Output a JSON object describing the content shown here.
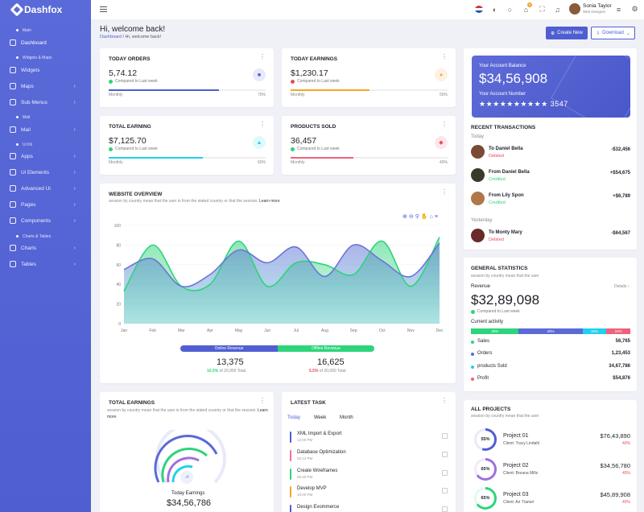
{
  "brand": "Dashfox",
  "sidebar": {
    "categories": [
      "Main",
      "Widgets & Maps",
      "Mail",
      "Ui Kit",
      "Charts & Tables"
    ],
    "items": [
      {
        "label": "Dashboard",
        "chev": ""
      },
      {
        "label": "Widgets",
        "chev": ""
      },
      {
        "label": "Maps",
        "chev": "›"
      },
      {
        "label": "Sub Menus",
        "chev": "›"
      },
      {
        "label": "Mail",
        "chev": "›"
      },
      {
        "label": "Apps",
        "chev": "›"
      },
      {
        "label": "Ui Elements",
        "chev": "›"
      },
      {
        "label": "Advanced Ui",
        "chev": "›"
      },
      {
        "label": "Pages",
        "chev": "›"
      },
      {
        "label": "Components",
        "chev": "›"
      },
      {
        "label": "Charts",
        "chev": "›"
      },
      {
        "label": "Tables",
        "chev": "›"
      }
    ]
  },
  "topbar": {
    "cart_badge": "5",
    "user_name": "Sonia Taylor",
    "user_role": "Web Designer"
  },
  "header": {
    "title": "Hi, welcome back!",
    "crumb_home": "Dashboard",
    "crumb_current": "Hi, welcome back!",
    "create_label": "Create New",
    "download_label": "Download"
  },
  "stats": [
    {
      "title": "TODAY ORDERS",
      "value": "5,74.12",
      "compare": "Compared to Last week",
      "label": "Monthly",
      "pct": "70%",
      "fill": 0.7
    },
    {
      "title": "TODAY EARNINGS",
      "value": "$1,230.17",
      "compare": "Compared to Last week",
      "label": "Monthly",
      "pct": "50%",
      "fill": 0.5
    },
    {
      "title": "TOTAL EARNING",
      "value": "$7,125.70",
      "compare": "Compared to Last week",
      "label": "Monthly",
      "pct": "60%",
      "fill": 0.6
    },
    {
      "title": "PRODUCTS SOLD",
      "value": "36,457",
      "compare": "Compared to Last week",
      "label": "Monthly",
      "pct": "40%",
      "fill": 0.4
    }
  ],
  "overview": {
    "title": "WEBSITE OVERVIEW",
    "subtitle": "session by country mean that the user is from the stated country or that the session.",
    "learn_more": "Learn more",
    "online_label": "Online Revenue",
    "offline_label": "Offline Revenue",
    "online_value": "13,375",
    "online_pct": "10.5%",
    "online_note": "of 20,000 Total",
    "offline_value": "16,625",
    "offline_pct": "5.5%",
    "offline_note": "of 20,000 Total"
  },
  "chart_data": {
    "type": "area",
    "categories": [
      "Jan",
      "Feb",
      "Mar",
      "Apr",
      "May",
      "Jun",
      "Jul",
      "Aug",
      "Sep",
      "Oct",
      "Nov",
      "Dec"
    ],
    "yticks": [
      "0",
      "20",
      "40",
      "60",
      "80",
      "100"
    ],
    "ylim": [
      0,
      100
    ],
    "series": [
      {
        "values": [
          33,
          80,
          38,
          40,
          84,
          38,
          62,
          60,
          50,
          84,
          38,
          88
        ],
        "color": "#2ed47a"
      },
      {
        "values": [
          55,
          66,
          38,
          50,
          75,
          62,
          78,
          48,
          80,
          64,
          48,
          82
        ],
        "color": "#6c74d8"
      }
    ]
  },
  "account": {
    "balance_label": "Your Account Balance",
    "balance": "$34,56,908",
    "number_label": "Your Account Number",
    "number": "★★★★★★★★★★ 3547"
  },
  "transactions": {
    "title": "RECENT TRANSACTIONS",
    "groups": [
      "Today",
      "Yesterday"
    ],
    "items": [
      {
        "name": "To Daniel Bella",
        "status": "Debited",
        "amount": "-$32,456",
        "color": "#e84c5a"
      },
      {
        "name": "From Daniel Bella",
        "status": "Credited",
        "amount": "+$54,675",
        "color": "#2ed47a"
      },
      {
        "name": "From Lily Spon",
        "status": "Credited",
        "amount": "+$6,789",
        "color": "#2ed47a"
      },
      {
        "name": "To Monty Mary",
        "status": "Debited",
        "amount": "-$64,567",
        "color": "#e84c5a"
      }
    ]
  },
  "general": {
    "title": "GENERAL STATISTICS",
    "subtitle": "session by country mean that the user",
    "revenue_label": "Revenue",
    "details": "Details ›",
    "revenue": "$32,89,098",
    "compare": "Compared to Last week",
    "activity_label": "Current activity",
    "segments": [
      {
        "label": "30%",
        "value": 0.3,
        "color": "#2ed47a"
      },
      {
        "label": "40%",
        "value": 0.4,
        "color": "#5a6ad8"
      },
      {
        "label": "15%",
        "value": 0.15,
        "color": "#1fd1ec"
      },
      {
        "label": "15%",
        "value": 0.15,
        "color": "#f0617a"
      }
    ],
    "rows": [
      {
        "label": "Sales",
        "value": "56,765",
        "color": "#2ed47a"
      },
      {
        "label": "Orders",
        "value": "1,23,453",
        "color": "#5a6ad8"
      },
      {
        "label": "products Sold",
        "value": "34,67,786",
        "color": "#1fd1ec"
      },
      {
        "label": "Profit",
        "value": "$54,876",
        "color": "#f0617a"
      }
    ]
  },
  "total_earnings": {
    "title": "TOTAL EARNINGS",
    "subtitle": "session by country mean that the user is from the stated country or that the session.",
    "learn_more": "Learn more",
    "caption": "Today Earnings",
    "value": "$34,56,786"
  },
  "tasks": {
    "title": "LATEST TASK",
    "tabs": [
      "Today",
      "Week",
      "Month"
    ],
    "items": [
      {
        "name": "XML Import & Export",
        "time": "12:00 PM",
        "color": "#4f5fd2"
      },
      {
        "name": "Database Optimization",
        "time": "02:13 PM",
        "color": "#f06fa0"
      },
      {
        "name": "Create Wireframes",
        "time": "06:20 PM",
        "color": "#2ed47a"
      },
      {
        "name": "Develop MVP",
        "time": "10:00 PM",
        "color": "#f5a623"
      },
      {
        "name": "Design Evommerce",
        "time": "",
        "color": "#4f5fd2"
      }
    ]
  },
  "projects": {
    "title": "ALL PROJECTS",
    "subtitle": "session by country mean that the user",
    "items": [
      {
        "name": "Project 01",
        "client": "Client: Tracy Lindahl",
        "amount": "$76,43,890",
        "pct": "40%",
        "ring": "55%",
        "color": "#4f5fd2"
      },
      {
        "name": "Project 02",
        "client": "Client: Breana Mills",
        "amount": "$34,56,780",
        "pct": "40%",
        "ring": "65%",
        "color": "#a06fe0"
      },
      {
        "name": "Project 03",
        "client": "Client: Ari Tramel",
        "amount": "$45,89,908",
        "pct": "40%",
        "ring": "65%",
        "color": "#2ed47a"
      }
    ]
  }
}
